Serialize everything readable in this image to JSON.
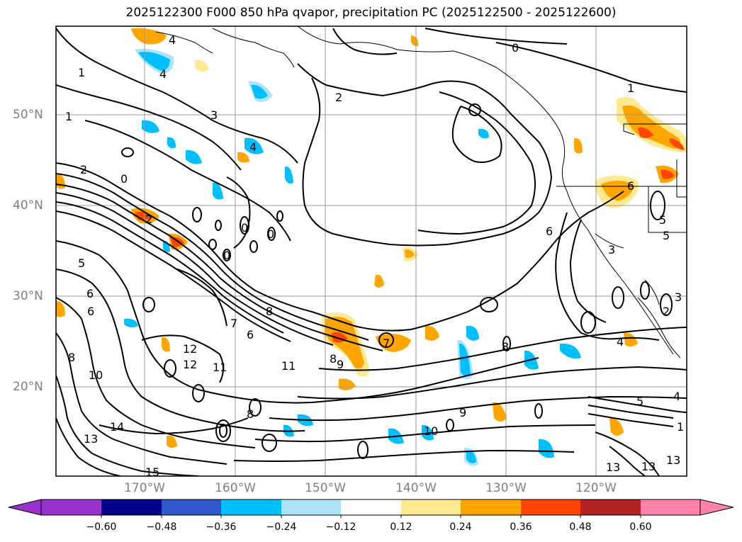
{
  "title": "2025122300 F000 850 hPa qvapor, precipitation PC (2025122500 - 2025122600)",
  "lat_labels": [
    "50°N",
    "40°N",
    "30°N",
    "20°N"
  ],
  "lon_labels": [
    "170°W",
    "160°W",
    "150°W",
    "140°W",
    "130°W",
    "120°W"
  ],
  "colorbar": {
    "ticks": [
      "−0.60",
      "−0.48",
      "−0.36",
      "−0.24",
      "−0.12",
      "0.12",
      "0.24",
      "0.36",
      "0.48",
      "0.60"
    ],
    "colors": [
      "#9932cc",
      "#00008b",
      "#3158c8",
      "#00bfff",
      "#ade3fb",
      "#ffffff",
      "#ffe991",
      "#ffa500",
      "#ff4500",
      "#b22222",
      "#ff82a9"
    ]
  },
  "contour_labels": [
    "4",
    "1",
    "2",
    "4",
    "1",
    "0",
    "2",
    "1",
    "3",
    "4",
    "2",
    "0",
    "0",
    "0",
    "0",
    "6",
    "5",
    "6",
    "5",
    "6",
    "6",
    "8",
    "8",
    "8",
    "8",
    "11",
    "12",
    "10",
    "14",
    "13",
    "15",
    "9",
    "13",
    "10",
    "13",
    "13",
    "12",
    "11",
    "7",
    "8",
    "9",
    "7",
    "6",
    "5",
    "4",
    "5",
    "3",
    "2",
    "3",
    "4",
    "1"
  ]
}
